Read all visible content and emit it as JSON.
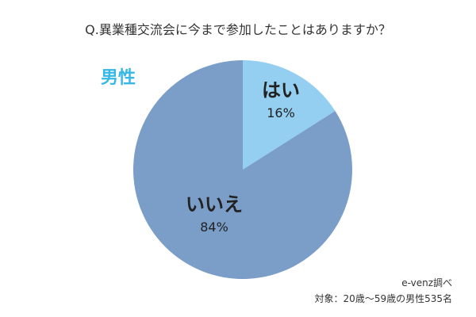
{
  "header": {
    "title": "Q.異業種交流会に今まで参加したことはありますか？"
  },
  "segment": {
    "label": "男性"
  },
  "chart_data": {
    "type": "pie",
    "title": "Q.異業種交流会に今まで参加したことはありますか？",
    "slices": [
      {
        "label": "はい",
        "value": 16,
        "display": "16%",
        "color": "#94cef0"
      },
      {
        "label": "いいえ",
        "value": 84,
        "display": "84%",
        "color": "#7a9ec8"
      }
    ],
    "legend": "none",
    "start_angle": "12 o'clock, clockwise"
  },
  "footer": {
    "source": "e-venz調べ",
    "note": "対象：20歳～59歳の男性535名"
  }
}
